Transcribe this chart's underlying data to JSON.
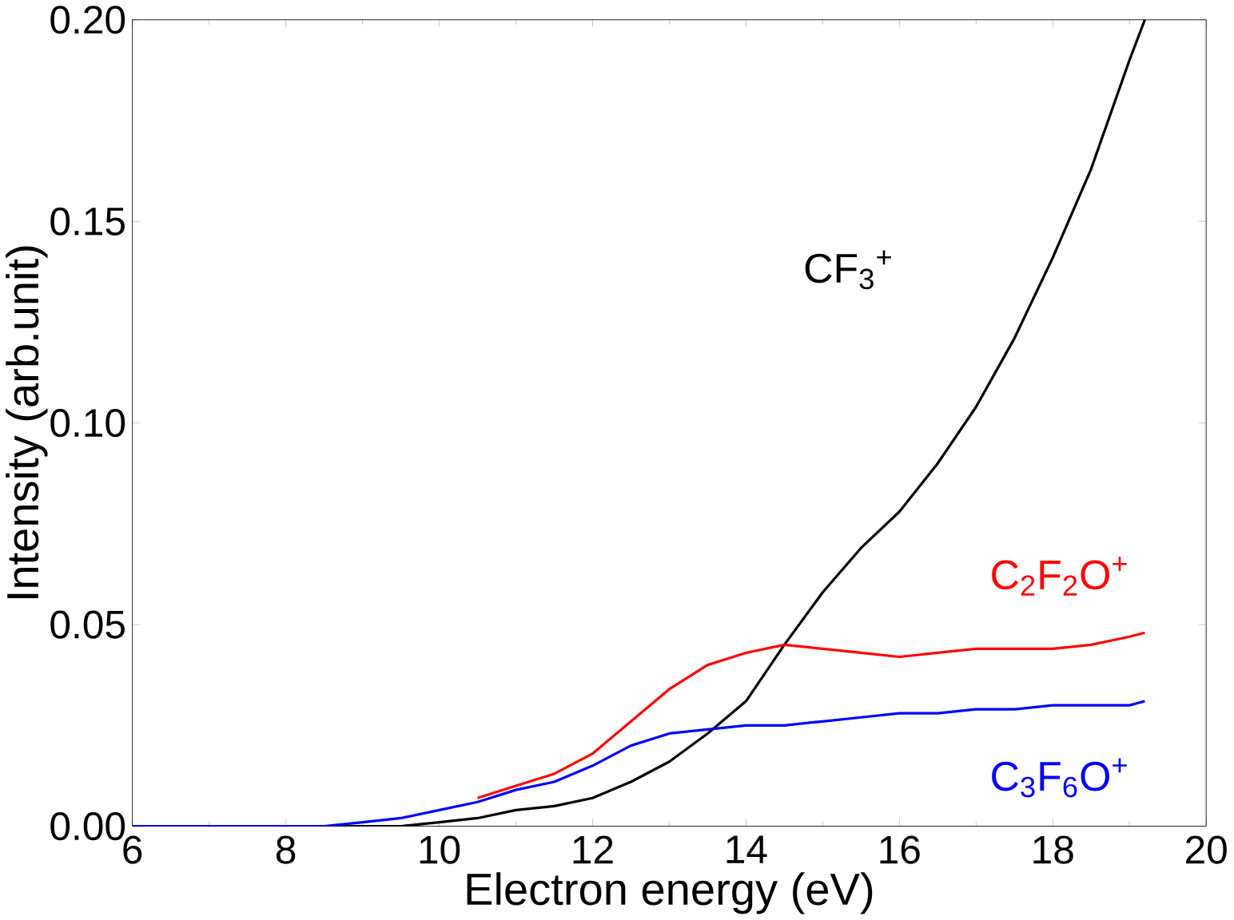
{
  "chart_data": {
    "type": "line",
    "xlabel": "Electron energy (eV)",
    "ylabel": "Intensity (arb.unit)",
    "xlim": [
      6,
      20
    ],
    "xticks": [
      6,
      8,
      10,
      12,
      14,
      16,
      18,
      20
    ],
    "ylim": [
      0,
      0.2
    ],
    "yticks": [
      {
        "value": 0,
        "label": "0.00"
      },
      {
        "value": 0.05,
        "label": "0.05"
      },
      {
        "value": 0.1,
        "label": "0.10"
      },
      {
        "value": 0.15,
        "label": "0.15"
      },
      {
        "value": 0.2,
        "label": "0.20"
      }
    ],
    "grid": false,
    "legend": false,
    "marker": "none",
    "line_style": "solid",
    "x": [
      6,
      7,
      8,
      8.5,
      9,
      9.5,
      10,
      10.5,
      11,
      11.5,
      12,
      12.5,
      13,
      13.5,
      14,
      14.5,
      15,
      15.5,
      16,
      16.5,
      17,
      17.5,
      18,
      18.5,
      19,
      19.2
    ],
    "series": [
      {
        "name": "CF$_{3}$$^{+}$",
        "color": "#000000",
        "values": [
          0,
          0,
          0,
          0,
          0,
          0,
          0.001,
          0.002,
          0.004,
          0.005,
          0.007,
          0.011,
          0.016,
          0.023,
          0.031,
          0.045,
          0.058,
          0.069,
          0.078,
          0.09,
          0.104,
          0.121,
          0.141,
          0.163,
          0.19,
          0.2
        ]
      },
      {
        "name": "C$_{2}$F$_{2}$O$^{+}$",
        "color": "#ff0000",
        "values": [
          null,
          null,
          null,
          null,
          null,
          null,
          null,
          0.007,
          0.01,
          0.013,
          0.018,
          0.026,
          0.034,
          0.04,
          0.043,
          0.045,
          0.044,
          0.043,
          0.042,
          0.043,
          0.044,
          0.044,
          0.044,
          0.045,
          0.047,
          0.048
        ]
      },
      {
        "name": "C$_{3}$F$_{6}$O$^{+}$",
        "color": "#0000ff",
        "values": [
          0,
          0,
          0,
          0,
          0.001,
          0.002,
          0.004,
          0.006,
          0.009,
          0.011,
          0.015,
          0.02,
          0.023,
          0.024,
          0.025,
          0.025,
          0.026,
          0.027,
          0.028,
          0.028,
          0.029,
          0.029,
          0.03,
          0.03,
          0.03,
          0.031
        ]
      }
    ]
  }
}
